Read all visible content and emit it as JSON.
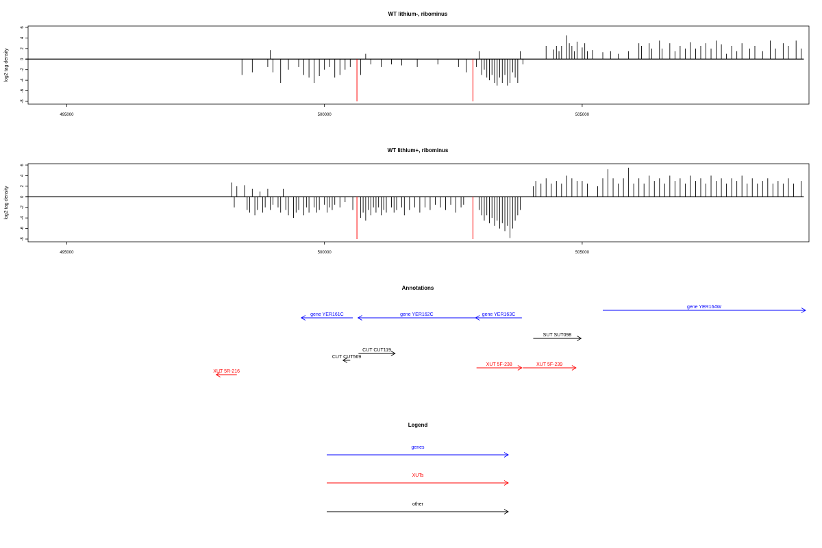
{
  "colors": {
    "density": "#000000",
    "marker": "#ff0000",
    "gene": "#0000ff",
    "xut": "#ff0000",
    "other": "#000000"
  },
  "chart_data": [
    {
      "type": "bar",
      "title": "WT lithium-, ribominus",
      "ylabel": "log2 tag density",
      "xlim": [
        494250,
        509400
      ],
      "ylim": [
        -8,
        6
      ],
      "x_ticks": [
        495000,
        500000,
        505000
      ],
      "y_ticks": [
        6,
        4,
        2,
        0,
        -2,
        -4,
        -6,
        -8
      ],
      "baseline_range": [
        494200,
        509300
      ],
      "markers": [
        500630,
        502880
      ],
      "marker_value": -8,
      "bars": [
        [
          498400,
          -3
        ],
        [
          498600,
          -2.5
        ],
        [
          498900,
          -1.5
        ],
        [
          498950,
          1.7
        ],
        [
          499000,
          -2.5
        ],
        [
          499150,
          -4.5
        ],
        [
          499300,
          -2
        ],
        [
          499500,
          -1.5
        ],
        [
          499600,
          -3
        ],
        [
          499700,
          -3.5
        ],
        [
          499800,
          -4.5
        ],
        [
          499900,
          -3.2
        ],
        [
          500000,
          -2
        ],
        [
          500100,
          -1.5
        ],
        [
          500200,
          -3.5
        ],
        [
          500300,
          -3
        ],
        [
          500400,
          -2
        ],
        [
          500500,
          -1.5
        ],
        [
          500700,
          -3
        ],
        [
          500800,
          1
        ],
        [
          500900,
          -1
        ],
        [
          501100,
          -1.5
        ],
        [
          501300,
          -1
        ],
        [
          501500,
          -1.2
        ],
        [
          501800,
          -1.5
        ],
        [
          502200,
          -1
        ],
        [
          502600,
          -1.5
        ],
        [
          502750,
          -2.5
        ],
        [
          502950,
          -1.5
        ],
        [
          503000,
          1.5
        ],
        [
          503050,
          -3
        ],
        [
          503100,
          -2
        ],
        [
          503150,
          -3.5
        ],
        [
          503200,
          -4
        ],
        [
          503250,
          -3
        ],
        [
          503300,
          -4.5
        ],
        [
          503350,
          -5
        ],
        [
          503400,
          -3.5
        ],
        [
          503450,
          -4.5
        ],
        [
          503500,
          -3
        ],
        [
          503550,
          -5
        ],
        [
          503600,
          -4.5
        ],
        [
          503650,
          -2.5
        ],
        [
          503700,
          -3.5
        ],
        [
          503750,
          -4.5
        ],
        [
          503800,
          1.5
        ],
        [
          503850,
          -1
        ],
        [
          504300,
          2.5
        ],
        [
          504450,
          1.8
        ],
        [
          504500,
          2.5
        ],
        [
          504550,
          1.5
        ],
        [
          504600,
          2.5
        ],
        [
          504700,
          4.5
        ],
        [
          504750,
          3
        ],
        [
          504800,
          2.5
        ],
        [
          504850,
          1.5
        ],
        [
          504900,
          3.3
        ],
        [
          505000,
          2.2
        ],
        [
          505050,
          3
        ],
        [
          505100,
          1.5
        ],
        [
          505200,
          1.7
        ],
        [
          505400,
          1.3
        ],
        [
          505550,
          1.5
        ],
        [
          505700,
          1
        ],
        [
          505900,
          1.5
        ],
        [
          506100,
          3
        ],
        [
          506150,
          2.5
        ],
        [
          506300,
          3
        ],
        [
          506350,
          2
        ],
        [
          506500,
          3.5
        ],
        [
          506550,
          2
        ],
        [
          506700,
          3
        ],
        [
          506800,
          1.5
        ],
        [
          506900,
          2.5
        ],
        [
          507000,
          2
        ],
        [
          507100,
          3.2
        ],
        [
          507200,
          2
        ],
        [
          507300,
          2.5
        ],
        [
          507400,
          3
        ],
        [
          507500,
          2
        ],
        [
          507600,
          3.5
        ],
        [
          507700,
          2.8
        ],
        [
          507800,
          1
        ],
        [
          507900,
          2.5
        ],
        [
          508000,
          1.5
        ],
        [
          508100,
          3
        ],
        [
          508250,
          2
        ],
        [
          508350,
          2.5
        ],
        [
          508500,
          1.5
        ],
        [
          508650,
          3.5
        ],
        [
          508750,
          2
        ],
        [
          508900,
          3
        ],
        [
          509000,
          2.5
        ],
        [
          509150,
          3.5
        ],
        [
          509250,
          2
        ]
      ]
    },
    {
      "type": "bar",
      "title": "WT lithium+, ribominus",
      "ylabel": "log2 tag density",
      "xlim": [
        494250,
        509400
      ],
      "ylim": [
        -8,
        6
      ],
      "x_ticks": [
        495000,
        500000,
        505000
      ],
      "y_ticks": [
        6,
        4,
        2,
        0,
        -2,
        -4,
        -6,
        -8
      ],
      "baseline_range": [
        494200,
        509300
      ],
      "markers": [
        500630,
        502880
      ],
      "marker_value": -8,
      "bars": [
        [
          498200,
          2.7
        ],
        [
          498250,
          -2
        ],
        [
          498300,
          2
        ],
        [
          498450,
          2.2
        ],
        [
          498500,
          -2.5
        ],
        [
          498550,
          -3
        ],
        [
          498600,
          1.5
        ],
        [
          498650,
          -3.5
        ],
        [
          498700,
          -2.5
        ],
        [
          498750,
          1
        ],
        [
          498800,
          -3
        ],
        [
          498850,
          -2
        ],
        [
          498900,
          1.5
        ],
        [
          498950,
          -2.5
        ],
        [
          499000,
          -1.5
        ],
        [
          499100,
          -2
        ],
        [
          499150,
          -3
        ],
        [
          499200,
          1.5
        ],
        [
          499250,
          -2.5
        ],
        [
          499300,
          -3.5
        ],
        [
          499400,
          -4
        ],
        [
          499450,
          -3
        ],
        [
          499500,
          -2.5
        ],
        [
          499600,
          -3.5
        ],
        [
          499650,
          -2
        ],
        [
          499700,
          -3
        ],
        [
          499800,
          -2
        ],
        [
          499850,
          -3
        ],
        [
          499900,
          -2.5
        ],
        [
          500000,
          -1.5
        ],
        [
          500050,
          -3
        ],
        [
          500100,
          -2
        ],
        [
          500150,
          -2.5
        ],
        [
          500200,
          -1.5
        ],
        [
          500300,
          -2
        ],
        [
          500400,
          -1
        ],
        [
          500550,
          -2.5
        ],
        [
          500700,
          -4
        ],
        [
          500750,
          -3
        ],
        [
          500800,
          -4.5
        ],
        [
          500850,
          -2.5
        ],
        [
          500900,
          -3.5
        ],
        [
          500950,
          -2
        ],
        [
          501000,
          -3
        ],
        [
          501050,
          -2
        ],
        [
          501100,
          -3.5
        ],
        [
          501150,
          -2.5
        ],
        [
          501200,
          -3
        ],
        [
          501300,
          -2
        ],
        [
          501350,
          -3
        ],
        [
          501400,
          -2.5
        ],
        [
          501500,
          -2
        ],
        [
          501550,
          -3.5
        ],
        [
          501650,
          -2.5
        ],
        [
          501750,
          -2
        ],
        [
          501850,
          -3
        ],
        [
          501950,
          -2
        ],
        [
          502050,
          -2.5
        ],
        [
          502150,
          -1.5
        ],
        [
          502250,
          -2
        ],
        [
          502350,
          -2.5
        ],
        [
          502450,
          -1.5
        ],
        [
          502550,
          -3
        ],
        [
          502650,
          -2
        ],
        [
          502700,
          -1.5
        ],
        [
          503000,
          -2.5
        ],
        [
          503050,
          -3.5
        ],
        [
          503100,
          -4.5
        ],
        [
          503150,
          -3.5
        ],
        [
          503200,
          -5
        ],
        [
          503250,
          -4
        ],
        [
          503300,
          -5.5
        ],
        [
          503350,
          -4.5
        ],
        [
          503400,
          -6
        ],
        [
          503450,
          -5
        ],
        [
          503500,
          -6.5
        ],
        [
          503550,
          -5.5
        ],
        [
          503600,
          -7.8
        ],
        [
          503650,
          -6
        ],
        [
          503700,
          -4.5
        ],
        [
          503750,
          -3.5
        ],
        [
          503800,
          -2.5
        ],
        [
          504050,
          2
        ],
        [
          504100,
          3
        ],
        [
          504200,
          2.5
        ],
        [
          504300,
          3.5
        ],
        [
          504400,
          2.5
        ],
        [
          504500,
          3
        ],
        [
          504600,
          2.5
        ],
        [
          504700,
          4
        ],
        [
          504800,
          3.5
        ],
        [
          504900,
          3
        ],
        [
          505000,
          3
        ],
        [
          505100,
          2.5
        ],
        [
          505300,
          2
        ],
        [
          505400,
          3.5
        ],
        [
          505500,
          5.2
        ],
        [
          505600,
          3.5
        ],
        [
          505700,
          2.5
        ],
        [
          505800,
          3.5
        ],
        [
          505900,
          5.5
        ],
        [
          506000,
          2.5
        ],
        [
          506100,
          3.5
        ],
        [
          506200,
          2.5
        ],
        [
          506300,
          4
        ],
        [
          506400,
          3
        ],
        [
          506500,
          3.5
        ],
        [
          506600,
          2.5
        ],
        [
          506700,
          4
        ],
        [
          506800,
          3
        ],
        [
          506900,
          3.5
        ],
        [
          507000,
          2.5
        ],
        [
          507100,
          4
        ],
        [
          507200,
          3
        ],
        [
          507300,
          3.5
        ],
        [
          507400,
          2.5
        ],
        [
          507500,
          4
        ],
        [
          507600,
          3
        ],
        [
          507700,
          3.5
        ],
        [
          507800,
          2.5
        ],
        [
          507900,
          3.5
        ],
        [
          508000,
          3
        ],
        [
          508100,
          4
        ],
        [
          508200,
          2.5
        ],
        [
          508300,
          3.5
        ],
        [
          508400,
          2.5
        ],
        [
          508500,
          3
        ],
        [
          508600,
          3.5
        ],
        [
          508700,
          2.5
        ],
        [
          508800,
          3
        ],
        [
          508900,
          2.5
        ],
        [
          509000,
          3.5
        ],
        [
          509100,
          2.5
        ],
        [
          509250,
          3
        ]
      ]
    }
  ],
  "annotations": {
    "title": "Annotations",
    "xlim": [
      494250,
      509400
    ],
    "items": [
      {
        "label": "gene YER161C",
        "start": 499550,
        "end": 500550,
        "row": 1,
        "cat": "gene"
      },
      {
        "label": "gene YER162C",
        "start": 500650,
        "end": 502930,
        "row": 1,
        "cat": "gene"
      },
      {
        "label": "gene YER163C",
        "start": 502930,
        "end": 503830,
        "row": 1,
        "cat": "gene"
      },
      {
        "label": "gene YER164W",
        "start": 505400,
        "end": 509830,
        "row": 0,
        "cat": "gene"
      },
      {
        "label": "SUT SUT098",
        "start": 504050,
        "end": 504980,
        "row": 3,
        "cat": "other"
      },
      {
        "label": "CUT CUT119",
        "start": 500660,
        "end": 501370,
        "row": 5,
        "cat": "other"
      },
      {
        "label": "CUT CUT569",
        "start": 500360,
        "end": 500500,
        "row": 6,
        "cat": "other"
      },
      {
        "label": "XUT 5F-238",
        "start": 502950,
        "end": 503830,
        "row": 7,
        "cat": "xut"
      },
      {
        "label": "XUT 5F-239",
        "start": 503850,
        "end": 504880,
        "row": 7,
        "cat": "xut"
      },
      {
        "label": "XUT 5R-216",
        "start": 497900,
        "end": 498300,
        "row": 8,
        "cat": "xut"
      }
    ]
  },
  "legend": {
    "title": "Legend",
    "items": [
      {
        "label": "genes",
        "cat": "gene"
      },
      {
        "label": "XUTs",
        "cat": "xut"
      },
      {
        "label": "other",
        "cat": "other"
      }
    ]
  }
}
